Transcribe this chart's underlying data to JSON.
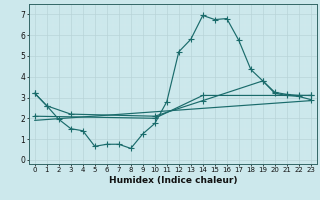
{
  "xlabel": "Humidex (Indice chaleur)",
  "xlim": [
    -0.5,
    23.5
  ],
  "ylim": [
    -0.2,
    7.5
  ],
  "xticks": [
    0,
    1,
    2,
    3,
    4,
    5,
    6,
    7,
    8,
    9,
    10,
    11,
    12,
    13,
    14,
    15,
    16,
    17,
    18,
    19,
    20,
    21,
    22,
    23
  ],
  "yticks": [
    0,
    1,
    2,
    3,
    4,
    5,
    6,
    7
  ],
  "bg_color": "#cce8ec",
  "grid_major_color": "#b8d4d8",
  "grid_minor_color": "#d4e8ec",
  "line_color": "#1a6b6b",
  "line1_x": [
    0,
    1,
    2,
    3,
    4,
    5,
    6,
    7,
    8,
    9,
    10,
    11,
    12,
    13,
    14,
    15,
    16,
    17,
    18,
    19,
    20,
    21,
    22,
    23
  ],
  "line1_y": [
    3.2,
    2.6,
    1.95,
    1.5,
    1.4,
    0.65,
    0.75,
    0.75,
    0.55,
    1.25,
    1.75,
    2.8,
    5.2,
    5.8,
    6.95,
    6.75,
    6.8,
    5.75,
    4.35,
    3.8,
    3.2,
    3.1,
    3.05,
    2.9
  ],
  "line2_x": [
    0,
    1,
    3,
    10,
    14,
    19,
    20,
    21,
    22,
    23
  ],
  "line2_y": [
    3.2,
    2.6,
    2.2,
    2.1,
    2.85,
    3.8,
    3.25,
    3.15,
    3.1,
    3.1
  ],
  "line3_x": [
    0,
    23
  ],
  "line3_y": [
    1.9,
    2.85
  ],
  "line4_x": [
    0,
    10,
    14,
    23
  ],
  "line4_y": [
    2.1,
    2.0,
    3.1,
    3.1
  ]
}
